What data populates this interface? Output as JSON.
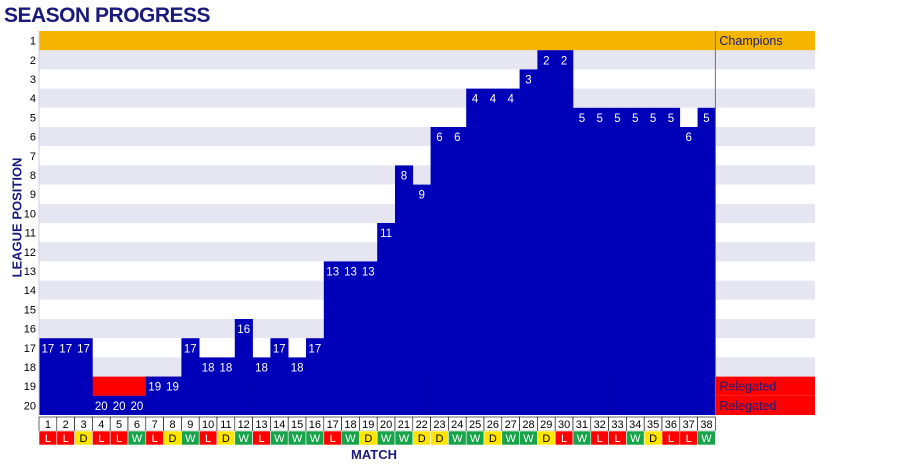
{
  "chart_data": {
    "type": "bar",
    "title": "SEASON PROGRESS",
    "xlabel": "MATCH",
    "ylabel": "LEAGUE POSITION",
    "ylim": [
      1,
      20
    ],
    "y_inverted": true,
    "categories": [
      "1",
      "2",
      "3",
      "4",
      "5",
      "6",
      "7",
      "8",
      "9",
      "10",
      "11",
      "12",
      "13",
      "14",
      "15",
      "16",
      "17",
      "18",
      "19",
      "20",
      "21",
      "22",
      "23",
      "24",
      "25",
      "26",
      "27",
      "28",
      "29",
      "30",
      "31",
      "32",
      "33",
      "34",
      "35",
      "36",
      "37",
      "38"
    ],
    "values": [
      17,
      17,
      17,
      20,
      20,
      20,
      19,
      19,
      17,
      18,
      18,
      16,
      18,
      17,
      18,
      17,
      13,
      13,
      13,
      11,
      8,
      9,
      6,
      6,
      4,
      4,
      4,
      3,
      2,
      2,
      5,
      5,
      5,
      5,
      5,
      5,
      6,
      5
    ],
    "results": [
      "L",
      "L",
      "D",
      "L",
      "L",
      "W",
      "L",
      "D",
      "W",
      "L",
      "D",
      "W",
      "L",
      "W",
      "W",
      "W",
      "L",
      "W",
      "D",
      "W",
      "W",
      "D",
      "D",
      "W",
      "W",
      "D",
      "W",
      "W",
      "D",
      "L",
      "W",
      "L",
      "L",
      "W",
      "D",
      "L",
      "L",
      "W"
    ],
    "zones": [
      {
        "label": "Champions",
        "positions": [
          1
        ],
        "color": "#f5b400"
      },
      {
        "label": "Relegated",
        "positions": [
          19
        ],
        "color": "#ff0000"
      },
      {
        "label": "Relegated",
        "positions": [
          20
        ],
        "color": "#ff0000"
      }
    ],
    "colors": {
      "bar": "#0000b8",
      "band": "#e6e6f2",
      "win": "#17a34a",
      "draw": "#ffe500",
      "loss": "#ff0000",
      "title": "#1a1a7a",
      "zone_text": "#1a1a7a"
    }
  }
}
